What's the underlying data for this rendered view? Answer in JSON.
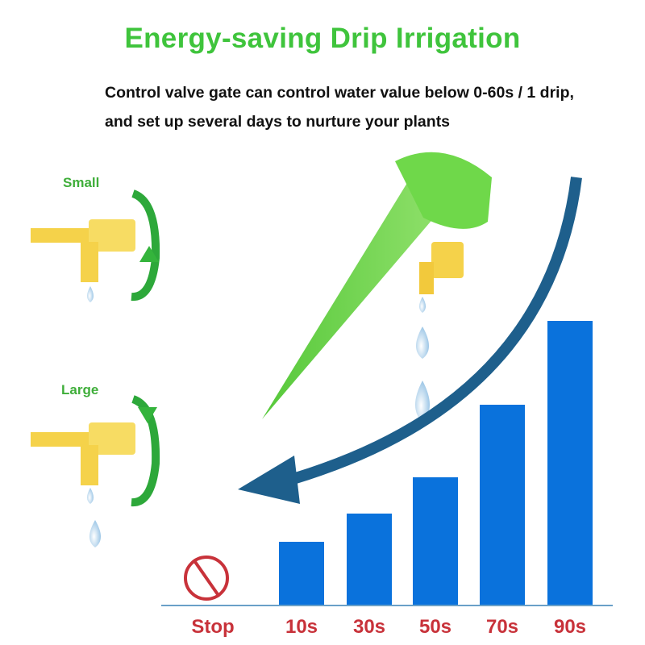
{
  "title": "Energy-saving Drip Irrigation",
  "subtitle_lines": [
    "Control valve gate can control water value below 0-60s / 1 drip,",
    "and set up several days to nurture your plants"
  ],
  "valve_labels": {
    "small": "Small",
    "large": "Large"
  },
  "colors": {
    "title": "#3fc43c",
    "bars": "#0a72dc",
    "labels": "#c8323a",
    "arrow": "#1e5f8c",
    "stop": "#c8323a"
  },
  "icons": [
    "rotate-arrow-icon",
    "stop-icon",
    "curved-arrow-icon",
    "water-drop-icon"
  ],
  "chart_data": {
    "type": "bar",
    "categories": [
      "Stop",
      "10s",
      "30s",
      "50s",
      "70s",
      "90s"
    ],
    "values": [
      0,
      78,
      113,
      158,
      248,
      352
    ],
    "title": "",
    "xlabel": "",
    "ylabel": "",
    "grid": false
  }
}
